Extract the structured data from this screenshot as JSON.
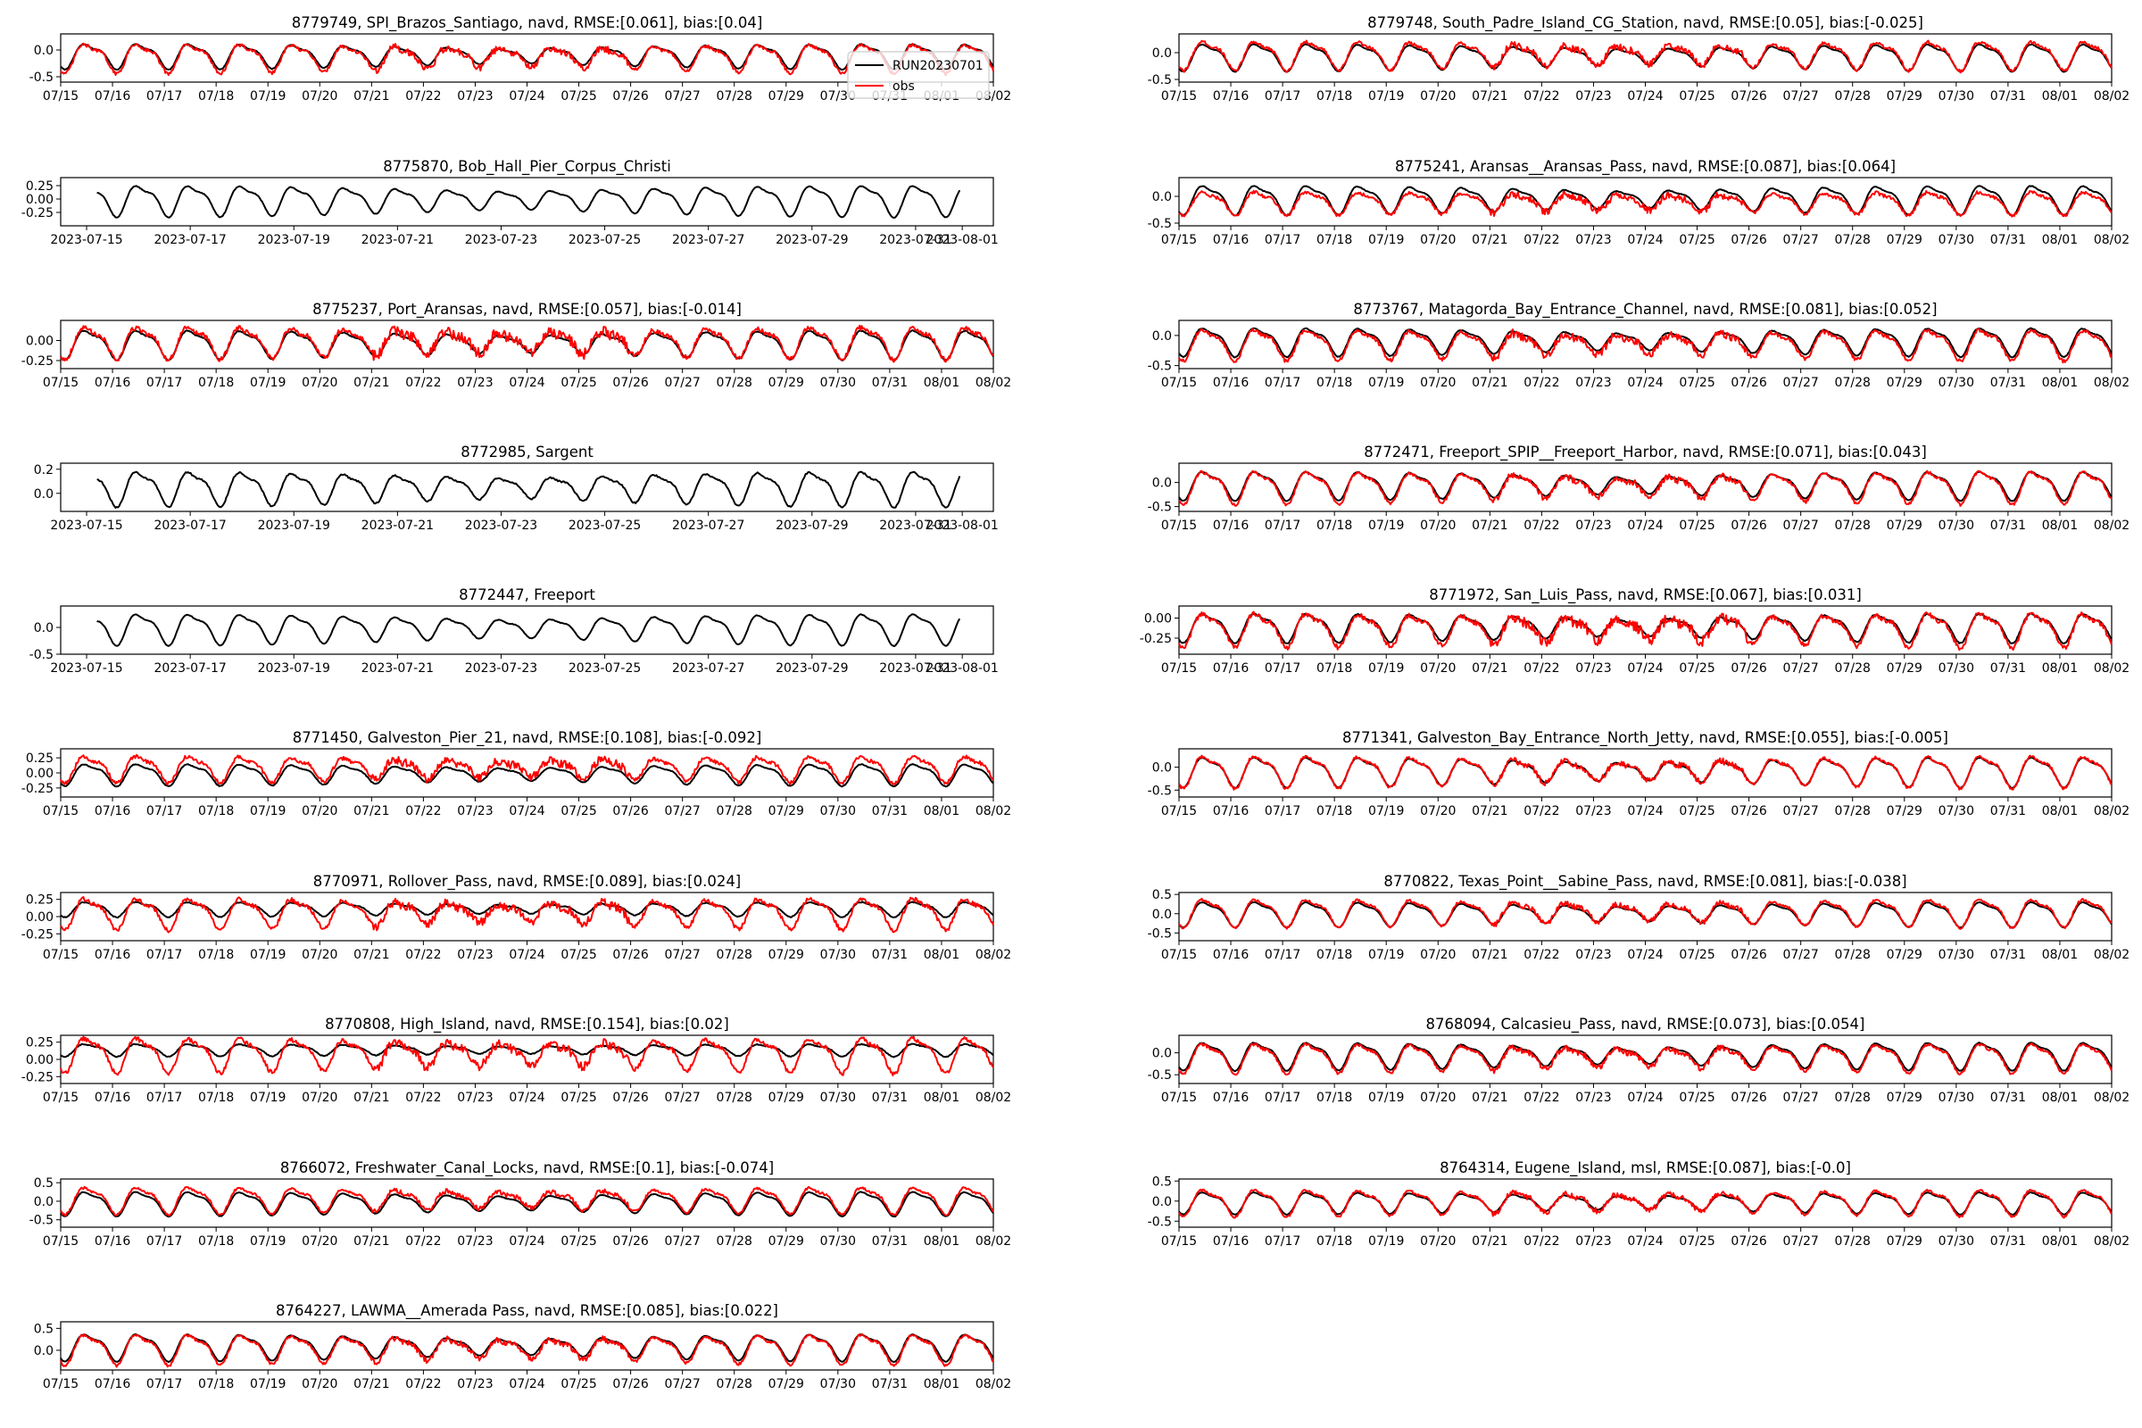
{
  "figure": {
    "legend_location": "upper-right of first panel"
  },
  "legend": [
    {
      "label": "RUN20230701",
      "color": "#000000"
    },
    {
      "label": "obs",
      "color": "#ff0000"
    }
  ],
  "chart_data": [
    {
      "type": "line",
      "title": "8779749, SPI_Brazos_Santiago, navd, RMSE:[0.061], bias:[0.04]",
      "xlabels": [
        "07/15",
        "07/16",
        "07/17",
        "07/18",
        "07/19",
        "07/20",
        "07/21",
        "07/22",
        "07/23",
        "07/24",
        "07/25",
        "07/26",
        "07/27",
        "07/28",
        "07/29",
        "07/30",
        "07/31",
        "08/01",
        "08/02"
      ],
      "yticks": [
        "-0.5",
        "0.0"
      ],
      "ylim": [
        -0.6,
        0.3
      ],
      "series": [
        {
          "name": "RUN20230701",
          "amplitude": 0.26,
          "offset": -0.13
        },
        {
          "name": "obs",
          "amplitude": 0.3,
          "offset": -0.17
        }
      ]
    },
    {
      "type": "line",
      "title": "8779748, South_Padre_Island_CG_Station, navd, RMSE:[0.05], bias:[-0.025]",
      "xlabels": [
        "07/15",
        "07/16",
        "07/17",
        "07/18",
        "07/19",
        "07/20",
        "07/21",
        "07/22",
        "07/23",
        "07/24",
        "07/25",
        "07/26",
        "07/27",
        "07/28",
        "07/29",
        "07/30",
        "07/31",
        "08/01",
        "08/02"
      ],
      "yticks": [
        "-0.5",
        "0.0"
      ],
      "ylim": [
        -0.55,
        0.35
      ],
      "series": [
        {
          "name": "RUN20230701",
          "amplitude": 0.28,
          "offset": -0.1
        },
        {
          "name": "obs",
          "amplitude": 0.3,
          "offset": -0.07
        }
      ]
    },
    {
      "type": "line",
      "title": "8775870, Bob_Hall_Pier_Corpus_Christi",
      "xlabels": [
        "2023-07-15",
        "2023-07-17",
        "2023-07-19",
        "2023-07-21",
        "2023-07-23",
        "2023-07-25",
        "2023-07-27",
        "2023-07-29",
        "2023-07-31",
        "2023-08-01"
      ],
      "yticks": [
        "-0.25",
        "0.00",
        "0.25"
      ],
      "ylim": [
        -0.5,
        0.4
      ],
      "series": [
        {
          "name": "RUN20230701",
          "amplitude": 0.32,
          "offset": -0.05
        }
      ]
    },
    {
      "type": "line",
      "title": "8775241, Aransas__Aransas_Pass, navd, RMSE:[0.087], bias:[0.064]",
      "xlabels": [
        "07/15",
        "07/16",
        "07/17",
        "07/18",
        "07/19",
        "07/20",
        "07/21",
        "07/22",
        "07/23",
        "07/24",
        "07/25",
        "07/26",
        "07/27",
        "07/28",
        "07/29",
        "07/30",
        "07/31",
        "08/01",
        "08/02"
      ],
      "yticks": [
        "-0.5",
        "0.0"
      ],
      "ylim": [
        -0.55,
        0.35
      ],
      "series": [
        {
          "name": "RUN20230701",
          "amplitude": 0.3,
          "offset": -0.08
        },
        {
          "name": "obs",
          "amplitude": 0.24,
          "offset": -0.14
        }
      ]
    },
    {
      "type": "line",
      "title": "8775237, Port_Aransas, navd, RMSE:[0.057], bias:[-0.014]",
      "xlabels": [
        "07/15",
        "07/16",
        "07/17",
        "07/18",
        "07/19",
        "07/20",
        "07/21",
        "07/22",
        "07/23",
        "07/24",
        "07/25",
        "07/26",
        "07/27",
        "07/28",
        "07/29",
        "07/30",
        "07/31",
        "08/01",
        "08/02"
      ],
      "yticks": [
        "-0.25",
        "0.00"
      ],
      "ylim": [
        -0.35,
        0.25
      ],
      "series": [
        {
          "name": "RUN20230701",
          "amplitude": 0.2,
          "offset": -0.06
        },
        {
          "name": "obs",
          "amplitude": 0.22,
          "offset": -0.04
        }
      ]
    },
    {
      "type": "line",
      "title": "8773767, Matagorda_Bay_Entrance_Channel, navd, RMSE:[0.081], bias:[0.052]",
      "xlabels": [
        "07/15",
        "07/16",
        "07/17",
        "07/18",
        "07/19",
        "07/20",
        "07/21",
        "07/22",
        "07/23",
        "07/24",
        "07/25",
        "07/26",
        "07/27",
        "07/28",
        "07/29",
        "07/30",
        "07/31",
        "08/01",
        "08/02"
      ],
      "yticks": [
        "-0.5",
        "0.0"
      ],
      "ylim": [
        -0.55,
        0.25
      ],
      "series": [
        {
          "name": "RUN20230701",
          "amplitude": 0.26,
          "offset": -0.12
        },
        {
          "name": "obs",
          "amplitude": 0.28,
          "offset": -0.17
        }
      ]
    },
    {
      "type": "line",
      "title": "8772985, Sargent",
      "xlabels": [
        "2023-07-15",
        "2023-07-17",
        "2023-07-19",
        "2023-07-21",
        "2023-07-23",
        "2023-07-25",
        "2023-07-27",
        "2023-07-29",
        "2023-07-31",
        "2023-08-01"
      ],
      "yticks": [
        "0.0",
        "0.2"
      ],
      "ylim": [
        -0.15,
        0.25
      ],
      "series": [
        {
          "name": "RUN20230701",
          "amplitude": 0.16,
          "offset": 0.03
        }
      ]
    },
    {
      "type": "line",
      "title": "8772471, Freeport_SPIP__Freeport_Harbor, navd, RMSE:[0.071], bias:[0.043]",
      "xlabels": [
        "07/15",
        "07/16",
        "07/17",
        "07/18",
        "07/19",
        "07/20",
        "07/21",
        "07/22",
        "07/23",
        "07/24",
        "07/25",
        "07/26",
        "07/27",
        "07/28",
        "07/29",
        "07/30",
        "07/31",
        "08/01",
        "08/02"
      ],
      "yticks": [
        "-0.5",
        "0.0"
      ],
      "ylim": [
        -0.6,
        0.4
      ],
      "series": [
        {
          "name": "RUN20230701",
          "amplitude": 0.33,
          "offset": -0.08
        },
        {
          "name": "obs",
          "amplitude": 0.37,
          "offset": -0.12
        }
      ]
    },
    {
      "type": "line",
      "title": "8772447, Freeport",
      "xlabels": [
        "2023-07-15",
        "2023-07-17",
        "2023-07-19",
        "2023-07-21",
        "2023-07-23",
        "2023-07-25",
        "2023-07-27",
        "2023-07-29",
        "2023-07-31",
        "2023-08-01"
      ],
      "yticks": [
        "-0.5",
        "0.0"
      ],
      "ylim": [
        -0.5,
        0.4
      ],
      "series": [
        {
          "name": "RUN20230701",
          "amplitude": 0.32,
          "offset": -0.05
        }
      ]
    },
    {
      "type": "line",
      "title": "8771972, San_Luis_Pass, navd, RMSE:[0.067], bias:[0.031]",
      "xlabels": [
        "07/15",
        "07/16",
        "07/17",
        "07/18",
        "07/19",
        "07/20",
        "07/21",
        "07/22",
        "07/23",
        "07/24",
        "07/25",
        "07/26",
        "07/27",
        "07/28",
        "07/29",
        "07/30",
        "07/31",
        "08/01",
        "08/02"
      ],
      "yticks": [
        "-0.25",
        "0.00"
      ],
      "ylim": [
        -0.45,
        0.15
      ],
      "series": [
        {
          "name": "RUN20230701",
          "amplitude": 0.2,
          "offset": -0.13
        },
        {
          "name": "obs",
          "amplitude": 0.23,
          "offset": -0.16
        }
      ]
    },
    {
      "type": "line",
      "title": "8771450, Galveston_Pier_21, navd, RMSE:[0.108], bias:[-0.092]",
      "xlabels": [
        "07/15",
        "07/16",
        "07/17",
        "07/18",
        "07/19",
        "07/20",
        "07/21",
        "07/22",
        "07/23",
        "07/24",
        "07/25",
        "07/26",
        "07/27",
        "07/28",
        "07/29",
        "07/30",
        "07/31",
        "08/01",
        "08/02"
      ],
      "yticks": [
        "-0.25",
        "0.00",
        "0.25"
      ],
      "ylim": [
        -0.4,
        0.4
      ],
      "series": [
        {
          "name": "RUN20230701",
          "amplitude": 0.2,
          "offset": -0.04
        },
        {
          "name": "obs",
          "amplitude": 0.24,
          "offset": 0.05
        }
      ]
    },
    {
      "type": "line",
      "title": "8771341, Galveston_Bay_Entrance_North_Jetty, navd, RMSE:[0.055], bias:[-0.005]",
      "xlabels": [
        "07/15",
        "07/16",
        "07/17",
        "07/18",
        "07/19",
        "07/20",
        "07/21",
        "07/22",
        "07/23",
        "07/24",
        "07/25",
        "07/26",
        "07/27",
        "07/28",
        "07/29",
        "07/30",
        "07/31",
        "08/01",
        "08/02"
      ],
      "yticks": [
        "-0.5",
        "0.0"
      ],
      "ylim": [
        -0.65,
        0.4
      ],
      "series": [
        {
          "name": "RUN20230701",
          "amplitude": 0.36,
          "offset": -0.12
        },
        {
          "name": "obs",
          "amplitude": 0.38,
          "offset": -0.12
        }
      ]
    },
    {
      "type": "line",
      "title": "8770971, Rollover_Pass, navd, RMSE:[0.089], bias:[0.024]",
      "xlabels": [
        "07/15",
        "07/16",
        "07/17",
        "07/18",
        "07/19",
        "07/20",
        "07/21",
        "07/22",
        "07/23",
        "07/24",
        "07/25",
        "07/26",
        "07/27",
        "07/28",
        "07/29",
        "07/30",
        "07/31",
        "08/01",
        "08/02"
      ],
      "yticks": [
        "-0.25",
        "0.00",
        "0.25"
      ],
      "ylim": [
        -0.35,
        0.35
      ],
      "series": [
        {
          "name": "RUN20230701",
          "amplitude": 0.12,
          "offset": 0.1
        },
        {
          "name": "obs",
          "amplitude": 0.25,
          "offset": 0.03
        }
      ]
    },
    {
      "type": "line",
      "title": "8770822, Texas_Point__Sabine_Pass, navd, RMSE:[0.081], bias:[-0.038]",
      "xlabels": [
        "07/15",
        "07/16",
        "07/17",
        "07/18",
        "07/19",
        "07/20",
        "07/21",
        "07/22",
        "07/23",
        "07/24",
        "07/25",
        "07/26",
        "07/27",
        "07/28",
        "07/29",
        "07/30",
        "07/31",
        "08/01",
        "08/02"
      ],
      "yticks": [
        "-0.5",
        "0.0",
        "0.5"
      ],
      "ylim": [
        -0.7,
        0.55
      ],
      "series": [
        {
          "name": "RUN20230701",
          "amplitude": 0.36,
          "offset": -0.03
        },
        {
          "name": "obs",
          "amplitude": 0.4,
          "offset": 0.0
        }
      ]
    },
    {
      "type": "line",
      "title": "8770808, High_Island, navd, RMSE:[0.154], bias:[0.02]",
      "xlabels": [
        "07/15",
        "07/16",
        "07/17",
        "07/18",
        "07/19",
        "07/20",
        "07/21",
        "07/22",
        "07/23",
        "07/24",
        "07/25",
        "07/26",
        "07/27",
        "07/28",
        "07/29",
        "07/30",
        "07/31",
        "08/01",
        "08/02"
      ],
      "yticks": [
        "-0.25",
        "0.00",
        "0.25"
      ],
      "ylim": [
        -0.35,
        0.35
      ],
      "series": [
        {
          "name": "RUN20230701",
          "amplitude": 0.1,
          "offset": 0.13
        },
        {
          "name": "obs",
          "amplitude": 0.28,
          "offset": 0.05
        }
      ]
    },
    {
      "type": "line",
      "title": "8768094, Calcasieu_Pass, navd, RMSE:[0.073], bias:[0.054]",
      "xlabels": [
        "07/15",
        "07/16",
        "07/17",
        "07/18",
        "07/19",
        "07/20",
        "07/21",
        "07/22",
        "07/23",
        "07/24",
        "07/25",
        "07/26",
        "07/27",
        "07/28",
        "07/29",
        "07/30",
        "07/31",
        "08/01",
        "08/02"
      ],
      "yticks": [
        "-0.5",
        "0.0"
      ],
      "ylim": [
        -0.7,
        0.4
      ],
      "series": [
        {
          "name": "RUN20230701",
          "amplitude": 0.35,
          "offset": -0.09
        },
        {
          "name": "obs",
          "amplitude": 0.37,
          "offset": -0.14
        }
      ]
    },
    {
      "type": "line",
      "title": "8766072, Freshwater_Canal_Locks, navd, RMSE:[0.1], bias:[-0.074]",
      "xlabels": [
        "07/15",
        "07/16",
        "07/17",
        "07/18",
        "07/19",
        "07/20",
        "07/21",
        "07/22",
        "07/23",
        "07/24",
        "07/25",
        "07/26",
        "07/27",
        "07/28",
        "07/29",
        "07/30",
        "07/31",
        "08/01",
        "08/02"
      ],
      "yticks": [
        "-0.5",
        "0.0",
        "0.5"
      ],
      "ylim": [
        -0.7,
        0.6
      ],
      "series": [
        {
          "name": "RUN20230701",
          "amplitude": 0.36,
          "offset": -0.08
        },
        {
          "name": "obs",
          "amplitude": 0.4,
          "offset": 0.0
        }
      ]
    },
    {
      "type": "line",
      "title": "8764314, Eugene_Island, msl, RMSE:[0.087], bias:[-0.0]",
      "xlabels": [
        "07/15",
        "07/16",
        "07/17",
        "07/18",
        "07/19",
        "07/20",
        "07/21",
        "07/22",
        "07/23",
        "07/24",
        "07/25",
        "07/26",
        "07/27",
        "07/28",
        "07/29",
        "07/30",
        "07/31",
        "08/01",
        "08/02"
      ],
      "yticks": [
        "-0.5",
        "0.0",
        "0.5"
      ],
      "ylim": [
        -0.65,
        0.55
      ],
      "series": [
        {
          "name": "RUN20230701",
          "amplitude": 0.3,
          "offset": -0.06
        },
        {
          "name": "obs",
          "amplitude": 0.36,
          "offset": -0.06
        }
      ]
    },
    {
      "type": "line",
      "title": "8764227, LAWMA__Amerada Pass, navd, RMSE:[0.085], bias:[0.022]",
      "xlabels": [
        "07/15",
        "07/16",
        "07/17",
        "07/18",
        "07/19",
        "07/20",
        "07/21",
        "07/22",
        "07/23",
        "07/24",
        "07/25",
        "07/26",
        "07/27",
        "07/28",
        "07/29",
        "07/30",
        "07/31",
        "08/01",
        "08/02"
      ],
      "yticks": [
        "0.0",
        "0.5"
      ],
      "ylim": [
        -0.45,
        0.65
      ],
      "series": [
        {
          "name": "RUN20230701",
          "amplitude": 0.34,
          "offset": 0.05
        },
        {
          "name": "obs",
          "amplitude": 0.38,
          "offset": 0.0
        }
      ]
    }
  ]
}
